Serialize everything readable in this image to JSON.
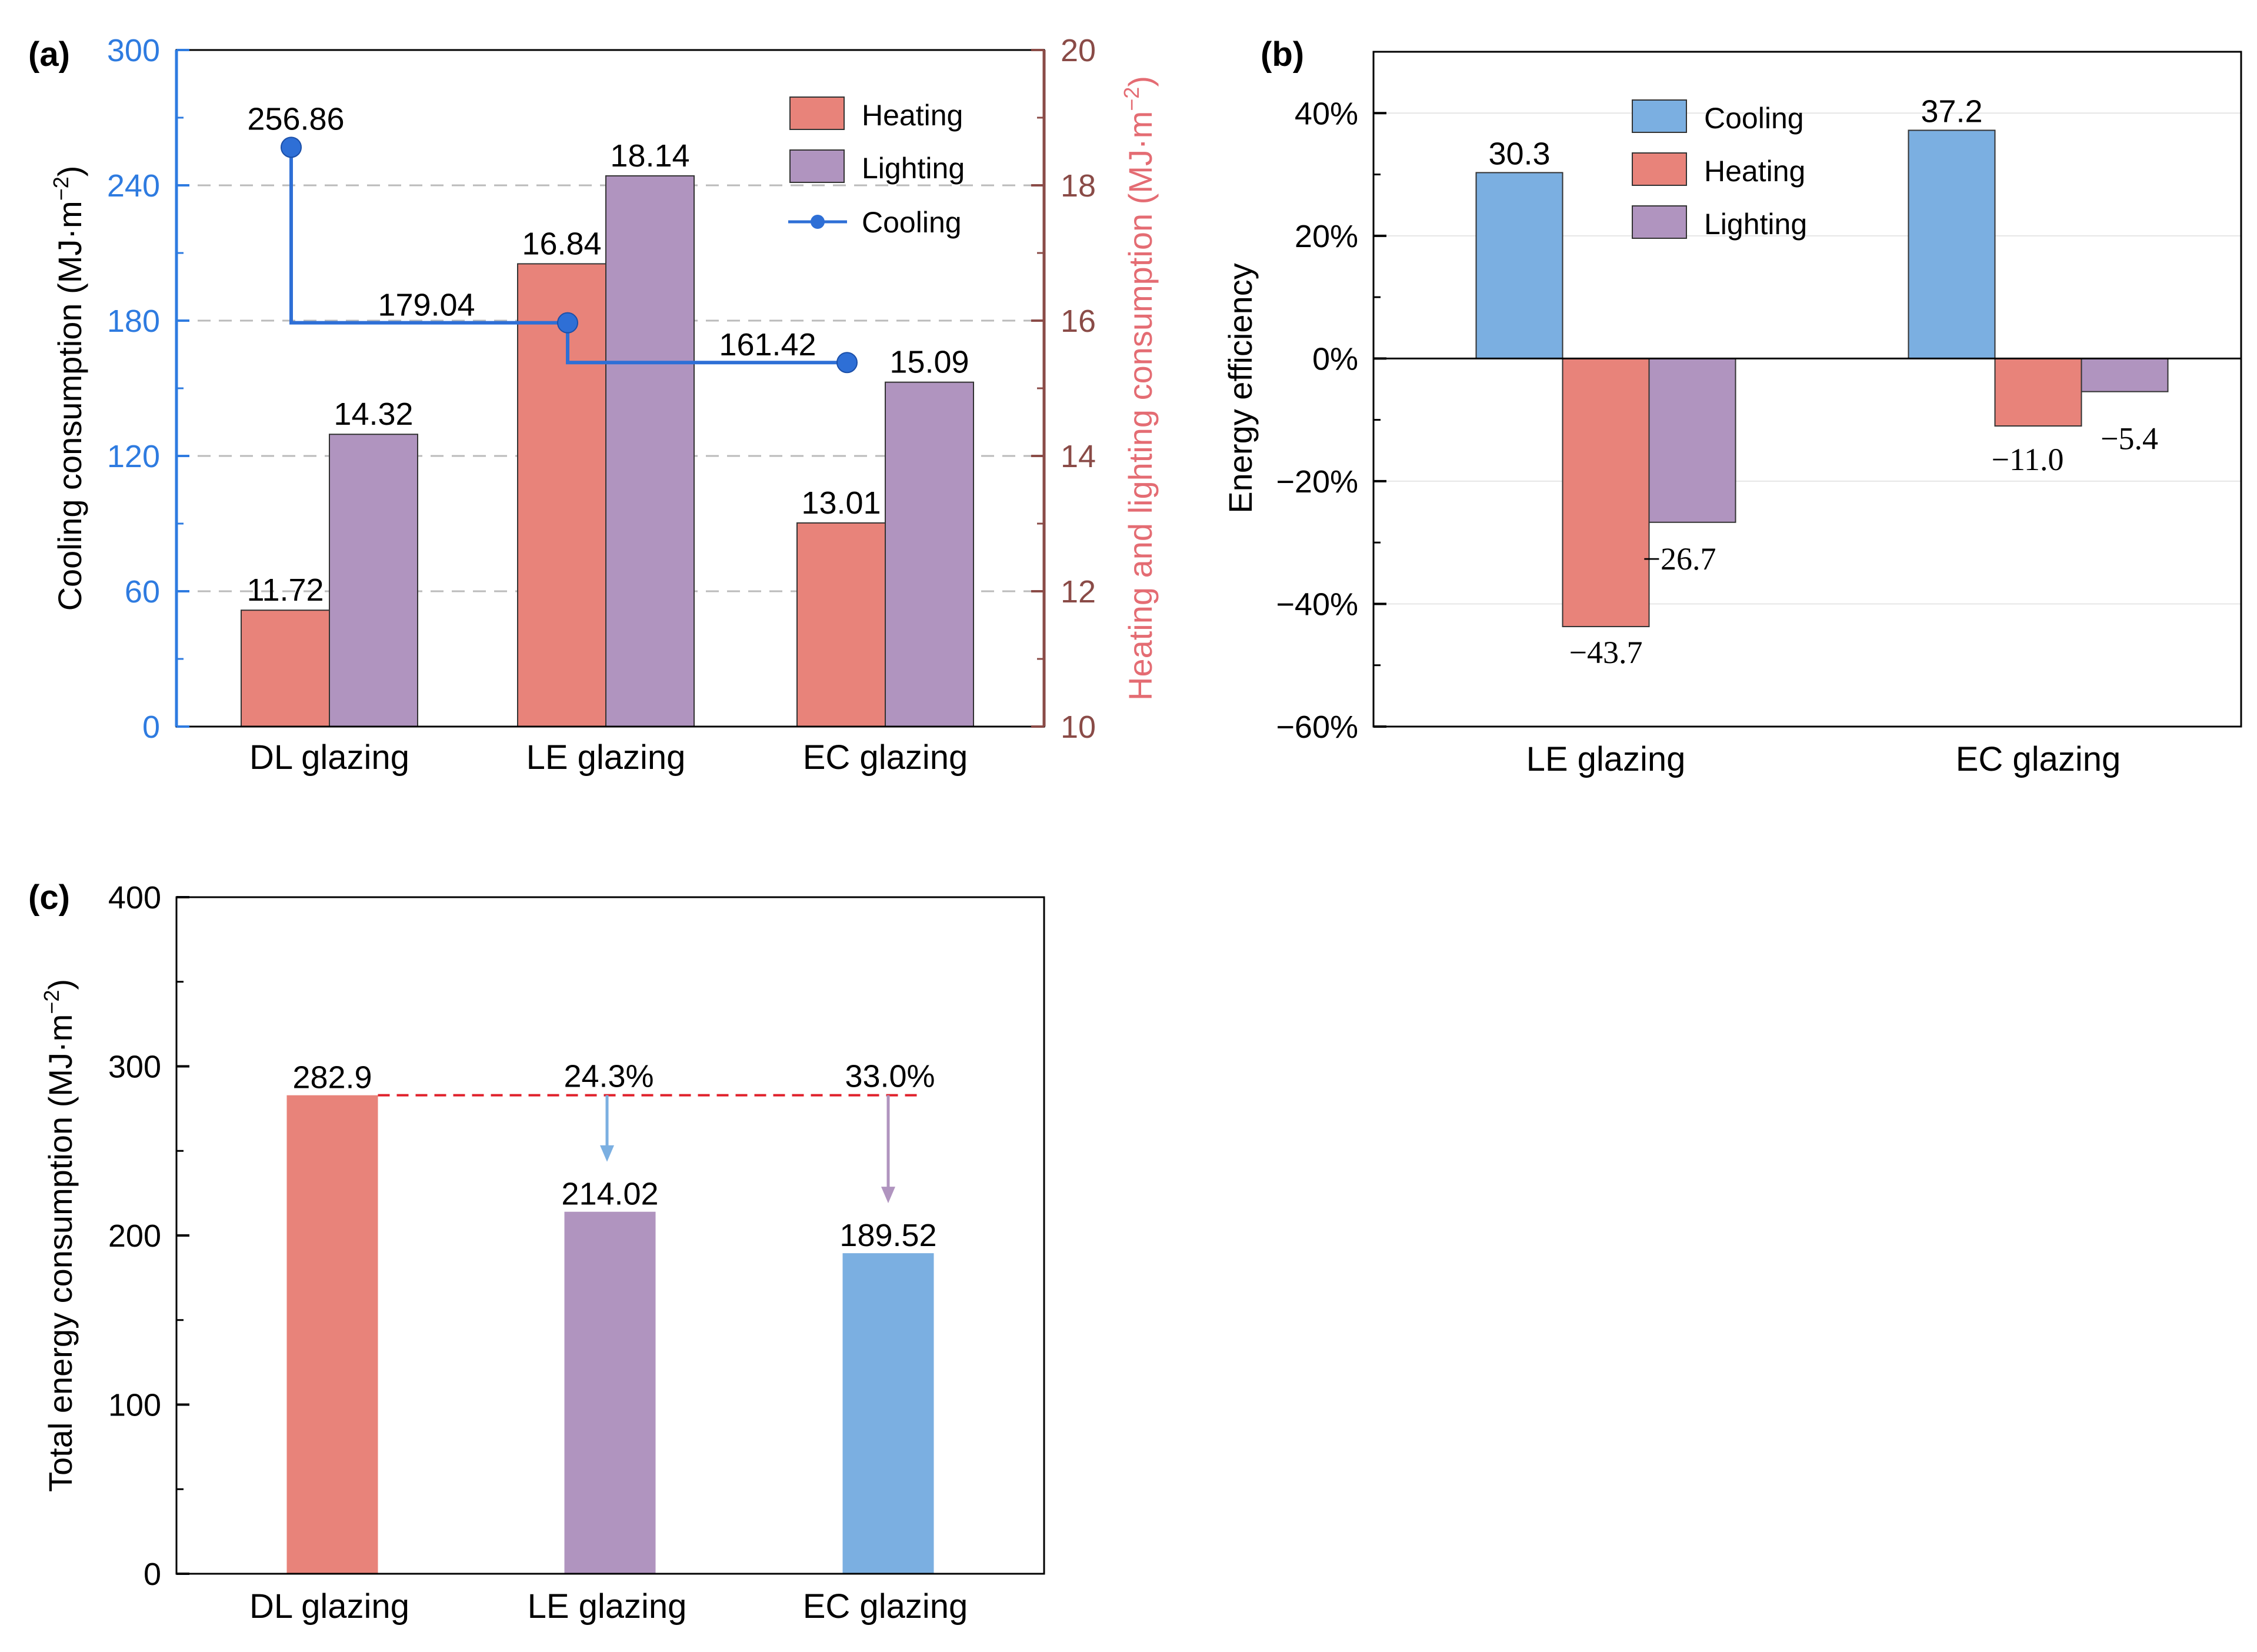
{
  "colors": {
    "heating": "#E8837A",
    "lighting": "#B094BF",
    "cooling": "#7BAFE1",
    "cooling_line": "#2E6FD6",
    "left_axis": "#2E7BE0",
    "right_axis": "#8A4B47",
    "right_label": "#E46C73",
    "dash_red": "#E0202A",
    "arrow_blue": "#7BAFE1",
    "arrow_purple": "#B094BF",
    "grid": "#BBBBBB"
  },
  "chart_data": [
    {
      "id": "a",
      "panel_label": "(a)",
      "type": "bar",
      "categories": [
        "DL glazing",
        "LE glazing",
        "EC glazing"
      ],
      "series": [
        {
          "name": "Heating",
          "axis": "right",
          "values": [
            11.72,
            16.84,
            13.01
          ],
          "labels": [
            "11.72",
            "16.84",
            "13.01"
          ]
        },
        {
          "name": "Lighting",
          "axis": "right",
          "values": [
            14.32,
            18.14,
            15.09
          ],
          "labels": [
            "14.32",
            "18.14",
            "15.09"
          ]
        },
        {
          "name": "Cooling",
          "axis": "left",
          "kind": "step-line",
          "values": [
            256.86,
            179.04,
            161.42
          ],
          "labels": [
            "256.86",
            "179.04",
            "161.42"
          ]
        }
      ],
      "left_axis": {
        "ylabel": "Cooling consumption (MJ·m",
        "ylabel_sup": "−2",
        "ylabel_end": ")",
        "ylim": [
          0,
          300
        ],
        "ticks": [
          "0",
          "60",
          "120",
          "180",
          "240",
          "300"
        ]
      },
      "right_axis": {
        "ylabel": "Heating and lighting consumption (MJ·m",
        "ylabel_sup": "−2",
        "ylabel_end": ")",
        "ylim": [
          10,
          20
        ],
        "ticks": [
          "10",
          "12",
          "14",
          "16",
          "18",
          "20"
        ]
      },
      "legend": [
        "Heating",
        "Lighting",
        "Cooling"
      ],
      "legend_position": "top-right",
      "grid": "dashed horizontal at major ticks"
    },
    {
      "id": "b",
      "panel_label": "(b)",
      "type": "bar",
      "categories": [
        "LE glazing",
        "EC glazing"
      ],
      "series": [
        {
          "name": "Cooling",
          "values": [
            30.3,
            37.2
          ],
          "labels": [
            "30.3",
            "37.2"
          ]
        },
        {
          "name": "Heating",
          "values": [
            -43.7,
            -11.0
          ],
          "labels": [
            "−43.7",
            "−11.0"
          ]
        },
        {
          "name": "Lighting",
          "values": [
            -26.7,
            -5.4
          ],
          "labels": [
            "−26.7",
            "−5.4"
          ]
        }
      ],
      "ylabel": "Energy efficiency",
      "ylim": [
        -60,
        50
      ],
      "ticks": [
        "−60%",
        "−40%",
        "−20%",
        "0%",
        "20%",
        "40%"
      ],
      "legend": [
        "Cooling",
        "Heating",
        "Lighting"
      ],
      "legend_position": "top-center"
    },
    {
      "id": "c",
      "panel_label": "(c)",
      "type": "bar",
      "categories": [
        "DL glazing",
        "LE glazing",
        "EC glazing"
      ],
      "values": [
        282.9,
        214.02,
        189.52
      ],
      "labels": [
        "282.9",
        "214.02",
        "189.52"
      ],
      "reductions": [
        "24.3%",
        "33.0%"
      ],
      "ylabel": "Total energy consumption (MJ·m",
      "ylabel_sup": "−2",
      "ylabel_end": ")",
      "ylim": [
        0,
        400
      ],
      "ticks": [
        "0",
        "100",
        "200",
        "300",
        "400"
      ]
    }
  ]
}
